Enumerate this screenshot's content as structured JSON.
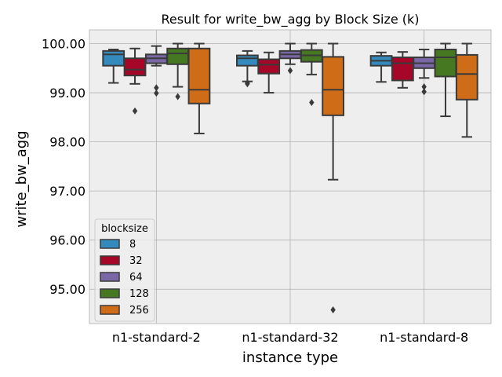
{
  "chart_data": {
    "type": "box",
    "title": "Result for write_bw_agg by Block Size (k)",
    "xlabel": "instance type",
    "ylabel": "write_bw_agg",
    "ylim": [
      94.3,
      100.28
    ],
    "yticks": [
      95.0,
      96.0,
      97.0,
      98.0,
      99.0,
      100.0
    ],
    "ytick_labels": [
      "95.00",
      "96.00",
      "97.00",
      "98.00",
      "99.00",
      "100.00"
    ],
    "grid": true,
    "legend": {
      "title": "blocksize",
      "placement": "lower-left"
    },
    "categories": [
      "n1-standard-2",
      "n1-standard-32",
      "n1-standard-8"
    ],
    "series": [
      {
        "name": "8",
        "color": "#348abd",
        "boxes": [
          {
            "whislo": 99.2,
            "q1": 99.55,
            "med": 99.78,
            "q3": 99.85,
            "whishi": 99.88,
            "fliers": []
          },
          {
            "whislo": 99.23,
            "q1": 99.55,
            "med": 99.7,
            "q3": 99.76,
            "whishi": 99.85,
            "fliers": [
              99.2,
              99.18
            ]
          },
          {
            "whislo": 99.22,
            "q1": 99.55,
            "med": 99.65,
            "q3": 99.75,
            "whishi": 99.82,
            "fliers": []
          }
        ]
      },
      {
        "name": "32",
        "color": "#a60628",
        "boxes": [
          {
            "whislo": 99.18,
            "q1": 99.35,
            "med": 99.47,
            "q3": 99.7,
            "whishi": 99.9,
            "fliers": [
              98.63
            ]
          },
          {
            "whislo": 99.0,
            "q1": 99.39,
            "med": 99.57,
            "q3": 99.68,
            "whishi": 99.82,
            "fliers": []
          },
          {
            "whislo": 99.1,
            "q1": 99.25,
            "med": 99.6,
            "q3": 99.72,
            "whishi": 99.83,
            "fliers": []
          }
        ]
      },
      {
        "name": "64",
        "color": "#7a68a6",
        "boxes": [
          {
            "whislo": 99.55,
            "q1": 99.6,
            "med": 99.7,
            "q3": 99.78,
            "whishi": 99.95,
            "fliers": [
              99.1,
              98.99
            ]
          },
          {
            "whislo": 99.58,
            "q1": 99.7,
            "med": 99.78,
            "q3": 99.85,
            "whishi": 100.0,
            "fliers": [
              99.45
            ]
          },
          {
            "whislo": 99.3,
            "q1": 99.5,
            "med": 99.6,
            "q3": 99.72,
            "whishi": 99.88,
            "fliers": [
              99.12,
              99.02
            ]
          }
        ]
      },
      {
        "name": "128",
        "color": "#467821",
        "boxes": [
          {
            "whislo": 99.12,
            "q1": 99.58,
            "med": 99.8,
            "q3": 99.9,
            "whishi": 100.0,
            "fliers": [
              98.92
            ]
          },
          {
            "whislo": 99.37,
            "q1": 99.63,
            "med": 99.76,
            "q3": 99.87,
            "whishi": 100.0,
            "fliers": [
              98.8
            ]
          },
          {
            "whislo": 98.52,
            "q1": 99.33,
            "med": 99.72,
            "q3": 99.88,
            "whishi": 100.0,
            "fliers": []
          }
        ]
      },
      {
        "name": "256",
        "color": "#cf6c17",
        "boxes": [
          {
            "whislo": 98.17,
            "q1": 98.78,
            "med": 99.06,
            "q3": 99.9,
            "whishi": 100.0,
            "fliers": []
          },
          {
            "whislo": 97.23,
            "q1": 98.54,
            "med": 99.06,
            "q3": 99.73,
            "whishi": 100.0,
            "fliers": [
              94.58
            ]
          },
          {
            "whislo": 98.1,
            "q1": 98.86,
            "med": 99.38,
            "q3": 99.77,
            "whishi": 100.0,
            "fliers": []
          }
        ]
      }
    ]
  }
}
